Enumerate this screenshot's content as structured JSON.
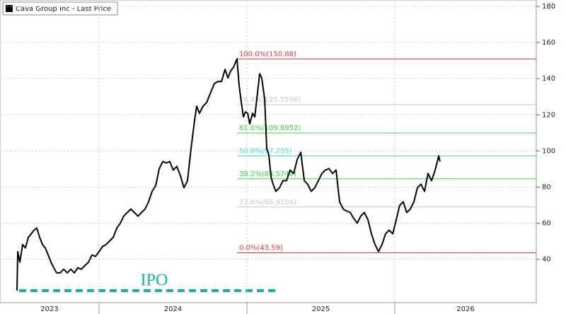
{
  "chart_data": {
    "type": "line",
    "legend": "Cava Group Inc - Last Price",
    "annotation": "IPO",
    "xlim": [
      2023.33,
      2026.957
    ],
    "xticks": [
      {
        "value": 2023,
        "label": "2023"
      },
      {
        "value": 2024,
        "label": "2024"
      },
      {
        "value": 2025,
        "label": "2025"
      },
      {
        "value": 2026,
        "label": "2026"
      }
    ],
    "ylim": [
      16,
      183.5
    ],
    "yticks": [
      40,
      60,
      80,
      100,
      120,
      140,
      160,
      180
    ],
    "grid": true,
    "series": [
      {
        "name": "Cava Group Inc - Last Price",
        "color": "#000000",
        "x": [
          2023.445,
          2023.45,
          2023.464,
          2023.483,
          2023.502,
          2023.522,
          2023.541,
          2023.56,
          2023.579,
          2023.598,
          2023.617,
          2023.636,
          2023.656,
          2023.675,
          2023.694,
          2023.713,
          2023.737,
          2023.761,
          2023.785,
          2023.809,
          2023.833,
          2023.856,
          2023.88,
          2023.904,
          2023.928,
          2023.952,
          2023.976,
          2024.0,
          2024.024,
          2024.048,
          2024.072,
          2024.096,
          2024.12,
          2024.144,
          2024.167,
          2024.191,
          2024.215,
          2024.239,
          2024.263,
          2024.287,
          2024.311,
          2024.335,
          2024.359,
          2024.383,
          2024.407,
          2024.431,
          2024.455,
          2024.478,
          2024.502,
          2024.526,
          2024.55,
          2024.574,
          2024.598,
          2024.622,
          2024.646,
          2024.66,
          2024.679,
          2024.703,
          2024.727,
          2024.756,
          2024.78,
          2024.804,
          2024.828,
          2024.852,
          2024.871,
          2024.89,
          2024.909,
          2024.933,
          2024.947,
          2024.962,
          2024.976,
          2024.99,
          2025.005,
          2025.019,
          2025.038,
          2025.053,
          2025.072,
          2025.086,
          2025.1,
          2025.12,
          2025.134,
          2025.148,
          2025.163,
          2025.177,
          2025.196,
          2025.22,
          2025.244,
          2025.268,
          2025.292,
          2025.316,
          2025.34,
          2025.364,
          2025.388,
          2025.411,
          2025.435,
          2025.459,
          2025.483,
          2025.507,
          2025.531,
          2025.555,
          2025.579,
          2025.603,
          2025.627,
          2025.651,
          2025.675,
          2025.699,
          2025.722,
          2025.746,
          2025.77,
          2025.794,
          2025.818,
          2025.842,
          2025.866,
          2025.89,
          2025.914,
          2025.938,
          2025.962,
          2025.986,
          2026.01,
          2026.033,
          2026.057,
          2026.081,
          2026.105,
          2026.129,
          2026.153,
          2026.177,
          2026.201,
          2026.225,
          2026.249,
          2026.273,
          2026.297,
          2026.306
        ],
        "values": [
          22.7,
          44.3,
          38.4,
          48.2,
          46.3,
          52.2,
          54.1,
          56.1,
          57.3,
          52.2,
          48.2,
          46.3,
          42.4,
          38.4,
          35.3,
          32.5,
          32.5,
          34.5,
          32.5,
          34.5,
          32.5,
          35.3,
          34.5,
          36.5,
          38.4,
          42.4,
          41.6,
          44.3,
          47.1,
          48.2,
          50.2,
          52.2,
          57.3,
          60,
          63.9,
          65.9,
          67.8,
          65.9,
          63.9,
          65.9,
          67.8,
          71.8,
          77.6,
          80.8,
          90.2,
          94.1,
          93.3,
          94.1,
          89.4,
          91.4,
          86.3,
          79.6,
          83.5,
          101.2,
          116.9,
          124.7,
          120.8,
          124.7,
          126.7,
          132.5,
          137.3,
          138.4,
          138.4,
          145.1,
          140.4,
          144.3,
          146.3,
          150.9,
          136.5,
          126.7,
          118.8,
          121.6,
          120.8,
          114.9,
          120.8,
          118.8,
          132.5,
          142.7,
          140.4,
          128.6,
          101.2,
          98,
          85.5,
          81.6,
          77.6,
          79.6,
          83.5,
          83.5,
          89.4,
          87.5,
          95.3,
          99.2,
          83.5,
          81.6,
          77.6,
          79.6,
          83.5,
          87.5,
          89.4,
          90.2,
          87.5,
          89.4,
          71.8,
          67.8,
          66.7,
          65.9,
          62.7,
          60,
          63.9,
          65.9,
          62,
          54.1,
          48.2,
          44.3,
          48.2,
          54.1,
          56.1,
          54.1,
          62,
          69.8,
          71.8,
          65.9,
          67.8,
          71.8,
          79.6,
          81.6,
          77.6,
          87.5,
          83.5,
          89.4,
          97.3,
          94.1
        ]
      }
    ],
    "fib_levels": [
      {
        "label": "100.0%(150.88)",
        "value": 150.88,
        "color": "#e8343c"
      },
      {
        "label": "76.4%(125.5596)",
        "value": 125.5596,
        "color": "#c8c8c8"
      },
      {
        "label": "61.8%(109.8952)",
        "value": 109.8952,
        "color": "#33dd33"
      },
      {
        "label": "50.0%(97.235)",
        "value": 97.235,
        "color": "#33dddd"
      },
      {
        "label": "38.2%(84.5748)",
        "value": 84.5748,
        "color": "#33dd33"
      },
      {
        "label": "23.6%(68.9104)",
        "value": 68.9104,
        "color": "#c8c8c8"
      },
      {
        "label": "0.0%(43.59)",
        "value": 43.59,
        "color": "#e8343c"
      }
    ]
  }
}
